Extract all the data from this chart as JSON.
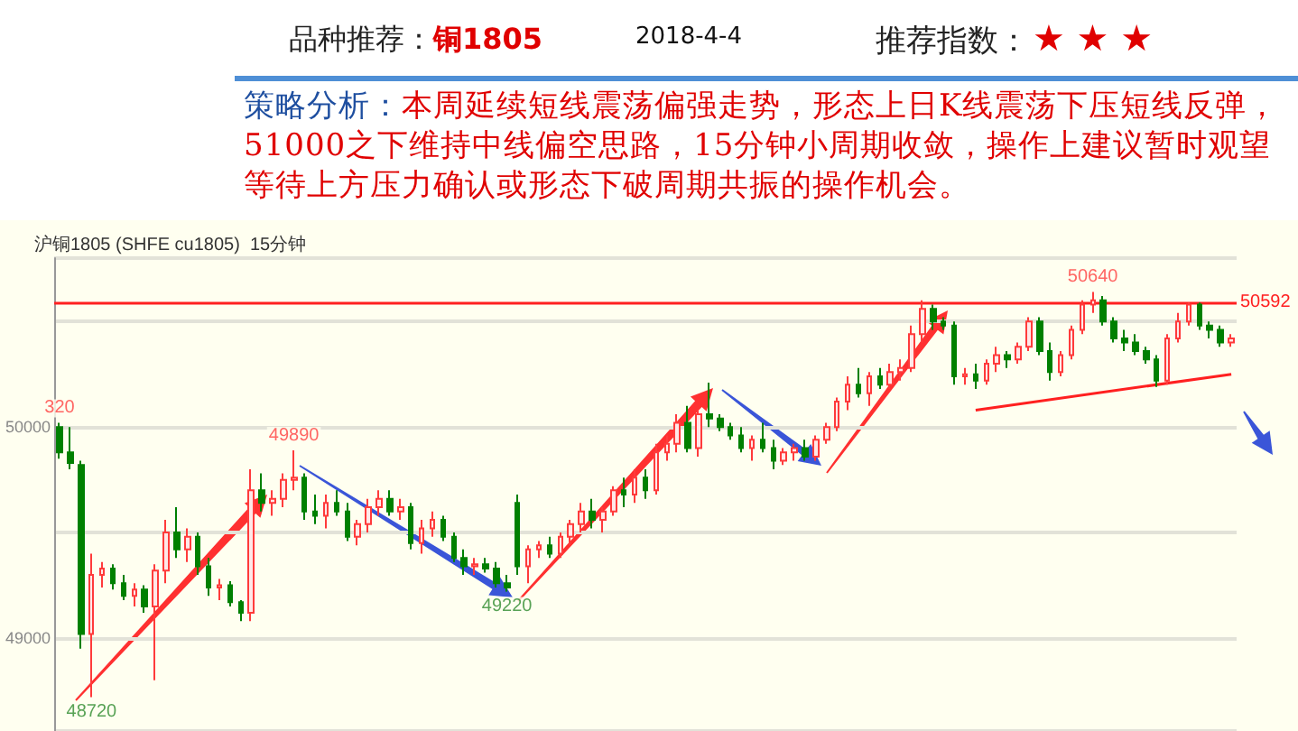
{
  "chart_data": {
    "type": "candlestick",
    "title": "品种推荐：",
    "subtitle": "铜1805",
    "annotations": [
      "2018-4-4",
      "推荐指数：",
      "★ ★ ★",
      "策略分析：",
      "本周延续短线震荡偏强走势，形态上日K线震荡下压短线反弹，51000之下维持中线偏空思路，15分钟小周期收敛，操作上建议暂时观望等待上方压力确认或形态下破周期共振的操作机会。",
      "沪铜1805 (SHFE cu1805)  15分钟",
      {
        "text": "320",
        "y": 50020
      },
      {
        "text": "48720",
        "y": 48720
      },
      {
        "text": "49890",
        "y": 49890
      },
      {
        "text": "49220",
        "y": 49220
      },
      {
        "text": "50640",
        "y": 50640
      }
    ],
    "categories": [
      null,
      null,
      null,
      null,
      null,
      null,
      null,
      null,
      null,
      null,
      null,
      null,
      null,
      null,
      null,
      null,
      null,
      null,
      null,
      null,
      null,
      null,
      null,
      null,
      null,
      null,
      null,
      null,
      null,
      null,
      null,
      null,
      null,
      null,
      null,
      null,
      null,
      null,
      null,
      null,
      null,
      null,
      null,
      null,
      null,
      null,
      null,
      null,
      null,
      null,
      null,
      null,
      null,
      null,
      null,
      null,
      null,
      null,
      null,
      null,
      null,
      null,
      null,
      null,
      null,
      null,
      null,
      null,
      null,
      null,
      null,
      null,
      null,
      null,
      null,
      null,
      null,
      null,
      null,
      null,
      null,
      null,
      null,
      null,
      null,
      null,
      null,
      null,
      null,
      null,
      null,
      null,
      null,
      null,
      null,
      null,
      null,
      null,
      null,
      null,
      null,
      null,
      null,
      null,
      null,
      null,
      null,
      null,
      null,
      null,
      null
    ],
    "series": [
      {
        "colors": [
          "#008000",
          "#008000",
          "#008000",
          "#ff3b3b",
          "#ff3b3b",
          "#008000",
          "#008000",
          "#ff3b3b",
          "#008000",
          "#ff3b3b",
          "#ff3b3b",
          "#008000",
          "#ff3b3b",
          "#008000",
          "#008000",
          "#ff3b3b",
          "#008000",
          "#008000",
          "#ff3b3b",
          "#008000",
          "#ff3b3b",
          "#ff3b3b",
          "#ff3b3b",
          "#008000",
          "#008000",
          "#ff3b3b",
          "#008000",
          "#008000",
          "#ff3b3b",
          "#ff3b3b",
          "#ff3b3b",
          "#008000",
          "#ff3b3b",
          "#008000",
          "#ff3b3b",
          "#ff3b3b",
          "#008000",
          "#008000",
          "#008000",
          "#ff3b3b",
          "#008000",
          "#008000",
          "#008000",
          "#008000",
          "#ff3b3b",
          "#ff3b3b",
          "#008000",
          "#ff3b3b",
          "#ff3b3b",
          "#ff3b3b",
          "#008000",
          "#ff3b3b",
          "#ff3b3b",
          "#008000",
          "#ff3b3b",
          "#008000",
          "#ff3b3b",
          "#ff3b3b",
          "#ff3b3b",
          "#008000",
          "#ff3b3b",
          "#008000",
          "#008000",
          "#008000",
          "#008000",
          "#ff3b3b",
          "#008000",
          "#008000",
          "#ff3b3b",
          "#ff3b3b",
          "#008000",
          "#ff3b3b",
          "#ff3b3b",
          "#ff3b3b",
          "#ff3b3b",
          "#008000",
          "#ff3b3b",
          "#008000",
          "#ff3b3b",
          "#ff3b3b",
          "#ff3b3b",
          "#ff3b3b",
          "#008000",
          "#008000",
          "#008000",
          "#ff3b3b",
          "#008000",
          "#ff3b3b",
          "#ff3b3b",
          "#008000",
          "#ff3b3b",
          "#ff3b3b",
          "#008000",
          "#008000",
          "#ff3b3b",
          "#ff3b3b",
          "#ff3b3b",
          "#ff3b3b",
          "#008000",
          "#008000",
          "#008000",
          "#008000",
          "#008000",
          "#008000",
          "#ff3b3b",
          "#ff3b3b",
          "#ff3b3b",
          "#008000",
          "#008000",
          "#008000",
          "#ff3b3b"
        ],
        "ohlc": [
          [
            50000,
            50020,
            49850,
            49880
          ],
          [
            49880,
            50000,
            49800,
            49830
          ],
          [
            49820,
            49840,
            48950,
            49020
          ],
          [
            49020,
            49400,
            48720,
            49300
          ],
          [
            49300,
            49360,
            49240,
            49330
          ],
          [
            49330,
            49350,
            49230,
            49260
          ],
          [
            49260,
            49300,
            49180,
            49200
          ],
          [
            49200,
            49260,
            49150,
            49230
          ],
          [
            49230,
            49250,
            49120,
            49150
          ],
          [
            49150,
            49350,
            48800,
            49320
          ],
          [
            49320,
            49560,
            49260,
            49500
          ],
          [
            49500,
            49620,
            49380,
            49420
          ],
          [
            49420,
            49520,
            49360,
            49480
          ],
          [
            49480,
            49500,
            49300,
            49340
          ],
          [
            49340,
            49380,
            49200,
            49240
          ],
          [
            49240,
            49280,
            49180,
            49250
          ],
          [
            49250,
            49270,
            49150,
            49170
          ],
          [
            49170,
            49180,
            49080,
            49120
          ],
          [
            49120,
            49800,
            49080,
            49700
          ],
          [
            49700,
            49780,
            49600,
            49640
          ],
          [
            49640,
            49700,
            49580,
            49660
          ],
          [
            49660,
            49780,
            49620,
            49750
          ],
          [
            49750,
            49890,
            49700,
            49760
          ],
          [
            49760,
            49780,
            49560,
            49600
          ],
          [
            49600,
            49680,
            49540,
            49580
          ],
          [
            49580,
            49680,
            49520,
            49640
          ],
          [
            49640,
            49700,
            49580,
            49600
          ],
          [
            49600,
            49640,
            49460,
            49480
          ],
          [
            49480,
            49560,
            49440,
            49540
          ],
          [
            49540,
            49660,
            49500,
            49620
          ],
          [
            49620,
            49700,
            49580,
            49660
          ],
          [
            49660,
            49700,
            49580,
            49600
          ],
          [
            49600,
            49660,
            49560,
            49620
          ],
          [
            49620,
            49640,
            49420,
            49450
          ],
          [
            49450,
            49560,
            49400,
            49520
          ],
          [
            49520,
            49600,
            49480,
            49560
          ],
          [
            49560,
            49580,
            49460,
            49480
          ],
          [
            49480,
            49500,
            49360,
            49380
          ],
          [
            49380,
            49420,
            49300,
            49340
          ],
          [
            49340,
            49380,
            49300,
            49350
          ],
          [
            49350,
            49380,
            49310,
            49330
          ],
          [
            49330,
            49360,
            49240,
            49260
          ],
          [
            49260,
            49300,
            49220,
            49240
          ],
          [
            49640,
            49680,
            49300,
            49340
          ],
          [
            49340,
            49440,
            49260,
            49420
          ],
          [
            49420,
            49460,
            49380,
            49440
          ],
          [
            49440,
            49480,
            49380,
            49400
          ],
          [
            49400,
            49500,
            49380,
            49480
          ],
          [
            49480,
            49560,
            49440,
            49540
          ],
          [
            49540,
            49640,
            49500,
            49600
          ],
          [
            49600,
            49660,
            49520,
            49560
          ],
          [
            49560,
            49620,
            49500,
            49600
          ],
          [
            49600,
            49720,
            49580,
            49700
          ],
          [
            49700,
            49760,
            49620,
            49680
          ],
          [
            49680,
            49800,
            49640,
            49760
          ],
          [
            49760,
            49800,
            49660,
            49700
          ],
          [
            49700,
            49920,
            49680,
            49880
          ],
          [
            49880,
            49960,
            49840,
            49920
          ],
          [
            49920,
            50060,
            49880,
            50020
          ],
          [
            50020,
            50100,
            49880,
            49900
          ],
          [
            49900,
            50080,
            49860,
            50060
          ],
          [
            50060,
            50210,
            50000,
            50040
          ],
          [
            50040,
            50060,
            49980,
            50000
          ],
          [
            50000,
            50020,
            49940,
            49960
          ],
          [
            49960,
            50000,
            49880,
            49900
          ],
          [
            49900,
            49960,
            49840,
            49940
          ],
          [
            49940,
            50020,
            49880,
            49900
          ],
          [
            49900,
            49940,
            49800,
            49840
          ],
          [
            49840,
            49900,
            49820,
            49880
          ],
          [
            49880,
            49920,
            49840,
            49900
          ],
          [
            49900,
            49940,
            49840,
            49860
          ],
          [
            49860,
            49960,
            49840,
            49940
          ],
          [
            49940,
            50020,
            49920,
            50000
          ],
          [
            50000,
            50140,
            49980,
            50120
          ],
          [
            50120,
            50240,
            50080,
            50200
          ],
          [
            50200,
            50280,
            50140,
            50160
          ],
          [
            50160,
            50260,
            50100,
            50240
          ],
          [
            50240,
            50280,
            50180,
            50200
          ],
          [
            50200,
            50300,
            50180,
            50260
          ],
          [
            50260,
            50320,
            50220,
            50280
          ],
          [
            50280,
            50480,
            50260,
            50440
          ],
          [
            50440,
            50600,
            50400,
            50560
          ],
          [
            50560,
            50580,
            50460,
            50500
          ],
          [
            50500,
            50520,
            50460,
            50480
          ],
          [
            50480,
            50500,
            50200,
            50240
          ],
          [
            50240,
            50280,
            50200,
            50250
          ],
          [
            50250,
            50300,
            50180,
            50220
          ],
          [
            50220,
            50320,
            50200,
            50300
          ],
          [
            50300,
            50380,
            50260,
            50340
          ],
          [
            50340,
            50360,
            50280,
            50320
          ],
          [
            50320,
            50400,
            50300,
            50380
          ],
          [
            50380,
            50520,
            50360,
            50500
          ],
          [
            50500,
            50520,
            50340,
            50360
          ],
          [
            50360,
            50400,
            50220,
            50260
          ],
          [
            50260,
            50360,
            50240,
            50340
          ],
          [
            50340,
            50480,
            50320,
            50460
          ],
          [
            50460,
            50600,
            50440,
            50580
          ],
          [
            50580,
            50640,
            50540,
            50600
          ],
          [
            50600,
            50620,
            50480,
            50500
          ],
          [
            50500,
            50520,
            50400,
            50420
          ],
          [
            50420,
            50460,
            50360,
            50400
          ],
          [
            50400,
            50440,
            50340,
            50360
          ],
          [
            50360,
            50380,
            50300,
            50320
          ],
          [
            50320,
            50340,
            50190,
            50220
          ],
          [
            50220,
            50440,
            50200,
            50420
          ],
          [
            50420,
            50540,
            50400,
            50500
          ],
          [
            50500,
            50590,
            50480,
            50580
          ],
          [
            50580,
            50590,
            50460,
            50480
          ],
          [
            50480,
            50500,
            50420,
            50460
          ],
          [
            50460,
            50480,
            50380,
            50400
          ],
          [
            50400,
            50440,
            50380,
            50420
          ]
        ]
      },
      {
        "type": "line",
        "color": "#ff2020",
        "values": [
          null,
          null,
          null,
          null,
          null,
          null,
          null,
          null,
          null,
          null,
          null,
          null,
          null,
          null,
          null,
          null,
          null,
          null,
          null,
          null,
          null,
          null,
          null,
          null,
          null,
          null,
          null,
          null,
          null,
          null,
          null,
          null,
          null,
          null,
          null,
          null,
          null,
          null,
          null,
          null,
          null,
          null,
          null,
          null,
          null,
          null,
          null,
          null,
          null,
          null,
          null,
          null,
          null,
          null,
          null,
          null,
          null,
          null,
          null,
          null,
          null,
          null,
          null,
          null,
          null,
          null,
          null,
          null,
          null,
          null,
          null,
          null,
          null,
          null,
          null,
          null,
          null,
          null,
          null,
          null,
          null,
          null,
          null,
          null,
          null,
          null,
          50080,
          null,
          null,
          null,
          null,
          null,
          null,
          null,
          null,
          null,
          null,
          null,
          null,
          null,
          null,
          null,
          null,
          null,
          null,
          null,
          null,
          null,
          null,
          null,
          50250
        ]
      }
    ],
    "ref_lines": [
      {
        "axis": "y",
        "value": 50592,
        "label": "50592",
        "color": "#ff2020"
      }
    ],
    "ylim": [
      48560,
      50800
    ],
    "yticks": [
      49000,
      50000
    ],
    "grid": "y",
    "tick_labels": "y"
  }
}
